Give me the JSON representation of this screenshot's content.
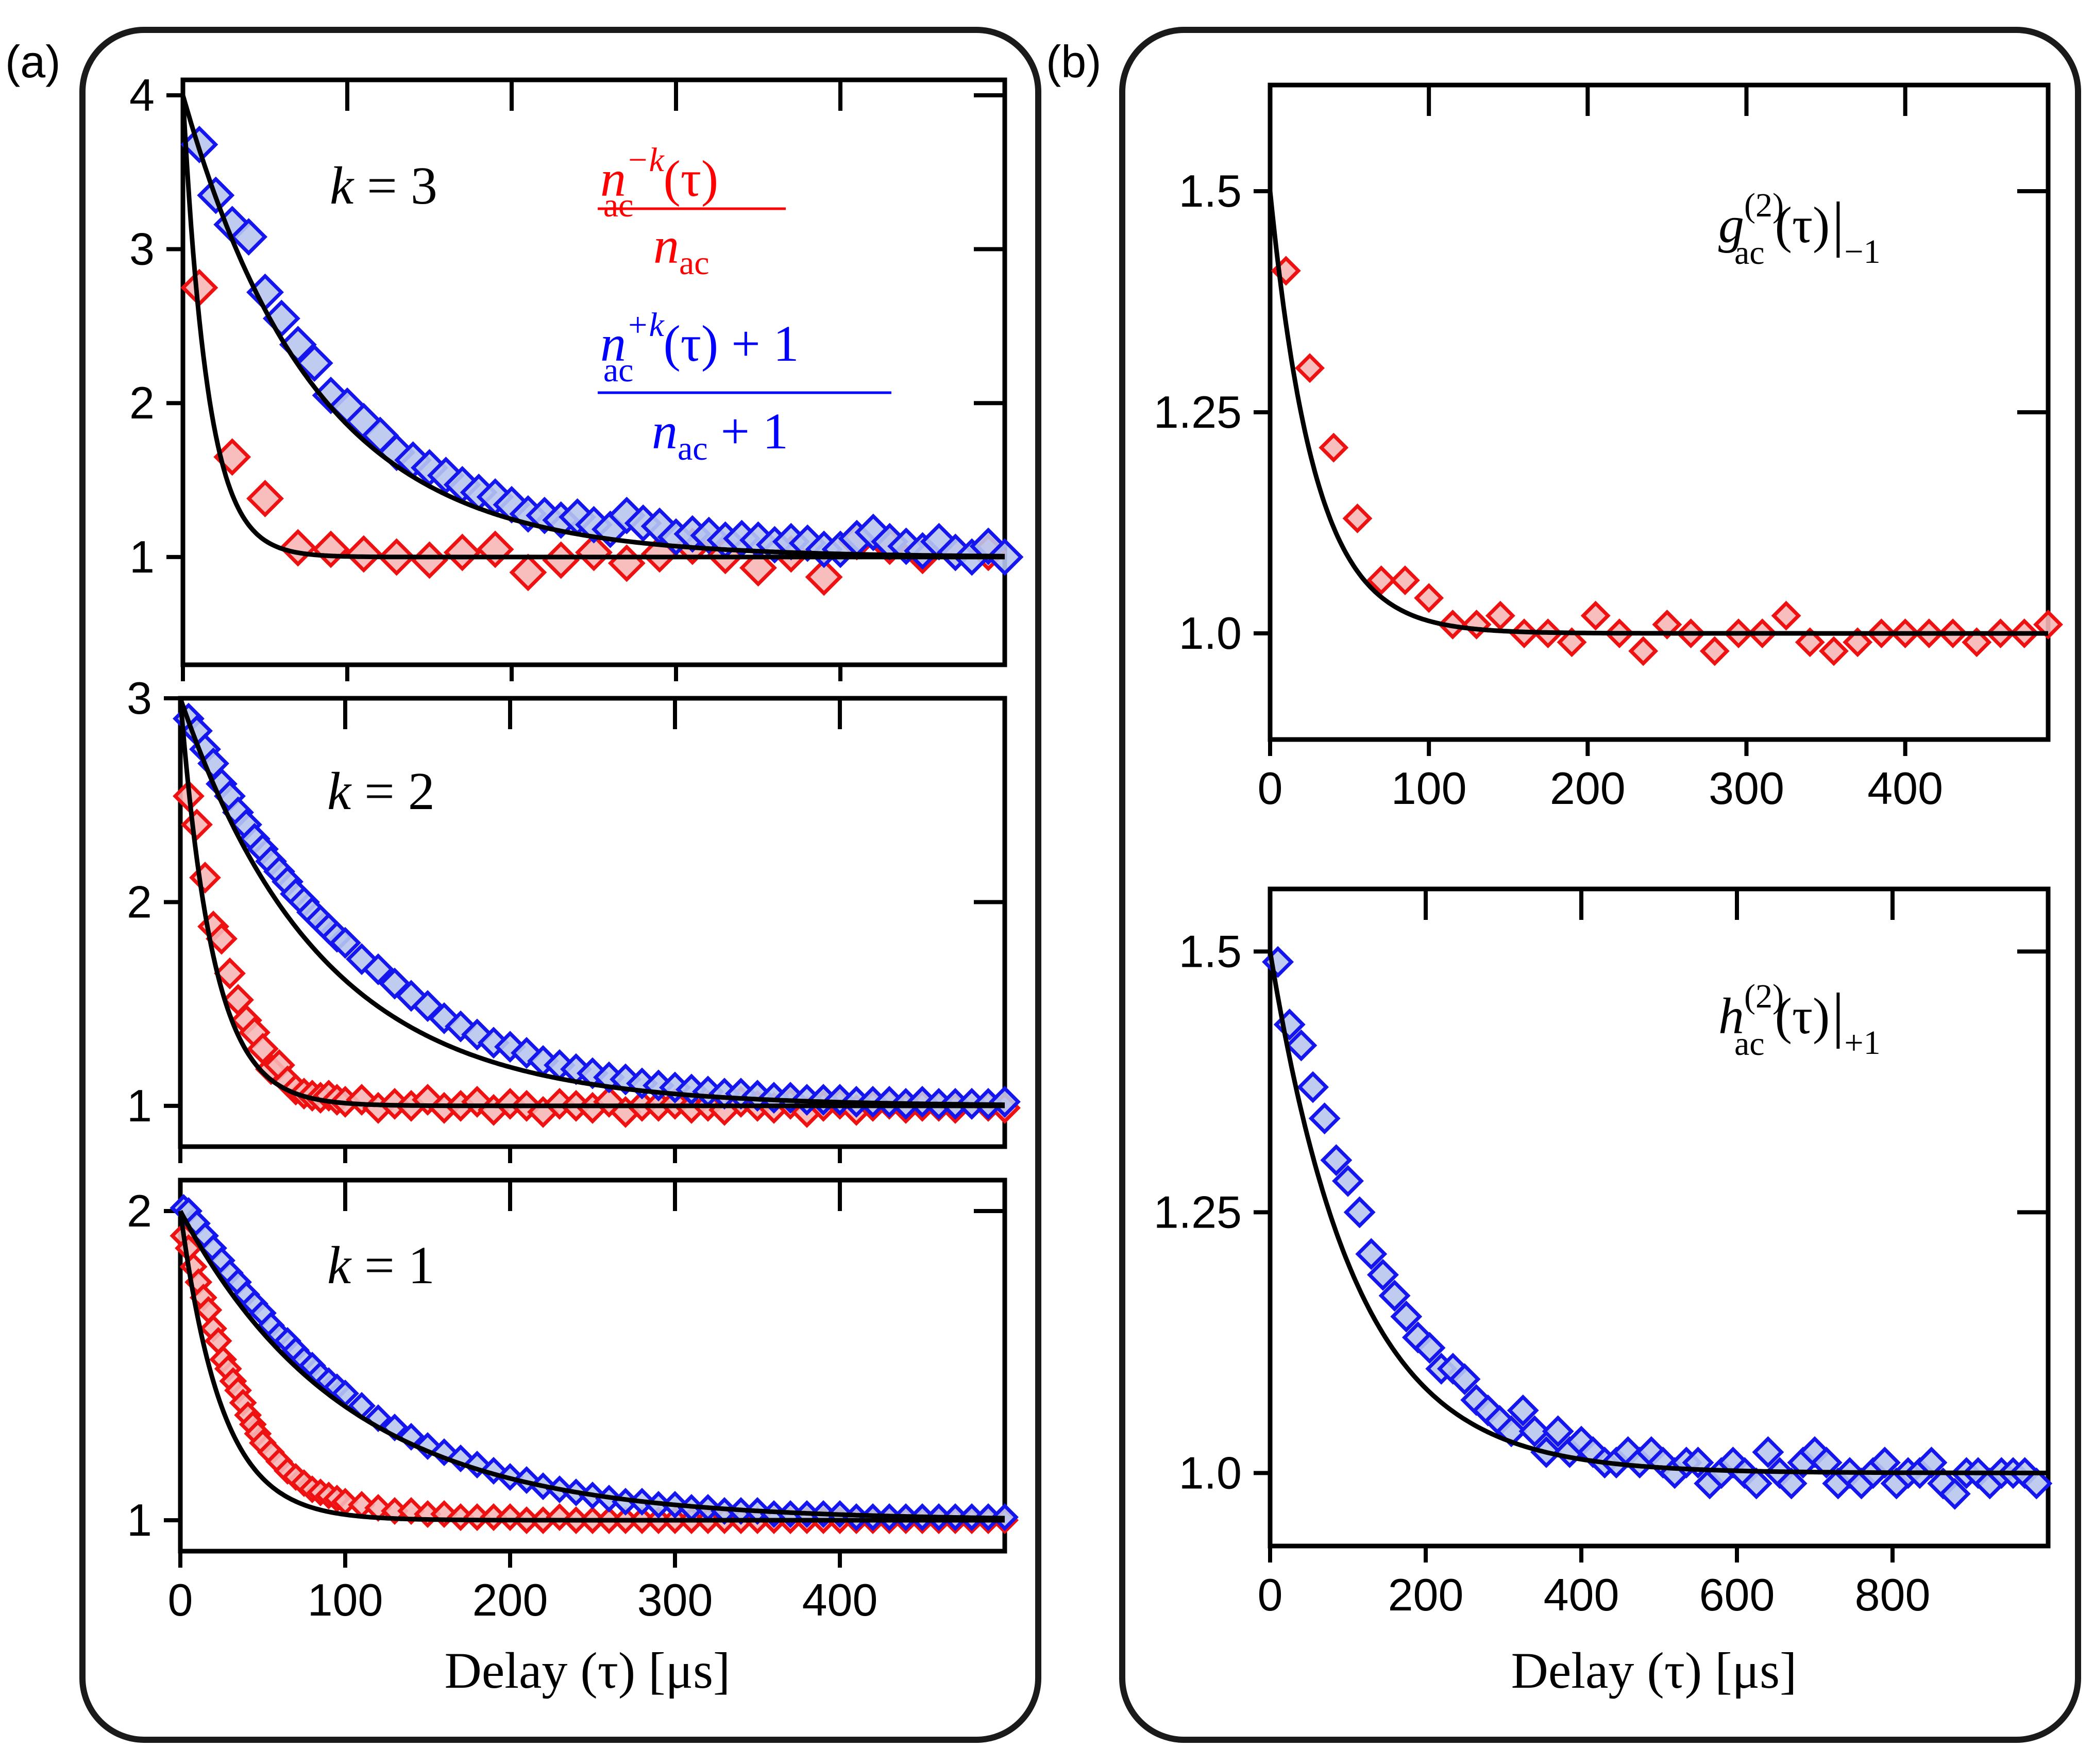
{
  "colors": {
    "red_stroke": "#ee1111",
    "red_fill": "#f7b7b7",
    "blue_stroke": "#1515ee",
    "blue_fill": "#b8c6ee",
    "fit": "#000000",
    "frame": "#1a1a1a"
  },
  "panels": {
    "a_label": "(a)",
    "b_label": "(b)"
  },
  "legend": {
    "red_num": "n",
    "red_num_sup": "−k",
    "red_num_sub": "ac",
    "red_num_arg": "(τ)",
    "red_den": "n",
    "red_den_sub": "ac",
    "blue_num": "n",
    "blue_num_sup": "+k",
    "blue_num_sub": "ac",
    "blue_num_arg": "(τ) + 1",
    "blue_den": "n",
    "blue_den_sub": "ac",
    "blue_den_tail": " + 1"
  },
  "annotations": {
    "g2_main": "g",
    "g2_sup": "(2)",
    "g2_sub": "ac",
    "g2_arg": "(τ)",
    "g2_bar": "|",
    "g2_eval": "−1",
    "h2_main": "h",
    "h2_sup": "(2)",
    "h2_sub": "ac",
    "h2_arg": "(τ)",
    "h2_bar": "|",
    "h2_eval": "+1"
  },
  "chart_data": [
    {
      "id": "a_k3",
      "type": "scatter",
      "title": "",
      "label": "k = 3",
      "xlabel": "",
      "ylabel": "",
      "xlim": [
        0,
        500
      ],
      "ylim": [
        0.3,
        4.1
      ],
      "yticks": [
        1,
        2,
        3,
        4
      ],
      "xticks": [
        0,
        100,
        200,
        300,
        400
      ],
      "show_xtick_labels": false,
      "grid": false,
      "series": [
        {
          "color": "red",
          "x": [
            10,
            30,
            50,
            70,
            90,
            110,
            130,
            150,
            170,
            190,
            210,
            230,
            250,
            270,
            290,
            310,
            330,
            350,
            370,
            390,
            410,
            430,
            450,
            470,
            490
          ],
          "y": [
            2.75,
            1.65,
            1.38,
            1.06,
            1.05,
            1.02,
            1.0,
            0.98,
            1.03,
            1.05,
            0.9,
            0.98,
            1.03,
            0.96,
            1.02,
            1.07,
            1.01,
            0.93,
            1.02,
            0.87,
            1.1,
            1.07,
            1.01,
            1.03,
            1.03
          ],
          "fit": {
            "A": 3.0,
            "tau": 15,
            "offset": 1.0
          }
        },
        {
          "color": "blue",
          "x": [
            10,
            20,
            30,
            40,
            50,
            60,
            70,
            80,
            90,
            100,
            110,
            120,
            130,
            140,
            150,
            160,
            170,
            180,
            190,
            200,
            210,
            220,
            230,
            240,
            250,
            260,
            270,
            280,
            290,
            300,
            310,
            320,
            330,
            340,
            350,
            360,
            370,
            380,
            390,
            400,
            410,
            420,
            430,
            440,
            450,
            460,
            470,
            480,
            490,
            500
          ],
          "y": [
            3.68,
            3.35,
            3.16,
            3.08,
            2.72,
            2.55,
            2.38,
            2.26,
            2.05,
            1.98,
            1.88,
            1.79,
            1.68,
            1.63,
            1.58,
            1.53,
            1.47,
            1.42,
            1.39,
            1.34,
            1.28,
            1.27,
            1.24,
            1.26,
            1.21,
            1.18,
            1.27,
            1.22,
            1.2,
            1.13,
            1.15,
            1.14,
            1.11,
            1.12,
            1.11,
            1.08,
            1.1,
            1.09,
            1.05,
            1.05,
            1.12,
            1.16,
            1.1,
            1.07,
            1.04,
            1.1,
            1.03,
            1.0,
            1.07,
            1.0
          ],
          "fit": {
            "A": 3.0,
            "tau": 80,
            "offset": 1.0
          }
        }
      ]
    },
    {
      "id": "a_k2",
      "type": "scatter",
      "title": "",
      "label": "k = 2",
      "xlabel": "",
      "ylabel": "",
      "xlim": [
        0,
        500
      ],
      "ylim": [
        0.8,
        3.0
      ],
      "yticks": [
        1,
        2,
        3
      ],
      "xticks": [
        0,
        100,
        200,
        300,
        400
      ],
      "show_xtick_labels": false,
      "grid": false,
      "series": [
        {
          "color": "red",
          "x": [
            5,
            10,
            15,
            20,
            25,
            30,
            35,
            40,
            45,
            50,
            55,
            60,
            65,
            70,
            75,
            80,
            85,
            90,
            95,
            100,
            110,
            120,
            130,
            140,
            150,
            160,
            170,
            180,
            190,
            200,
            210,
            220,
            230,
            240,
            250,
            260,
            270,
            280,
            290,
            300,
            310,
            320,
            330,
            340,
            350,
            360,
            370,
            380,
            390,
            400,
            410,
            420,
            430,
            440,
            450,
            460,
            470,
            480,
            490,
            500
          ],
          "y": [
            2.52,
            2.38,
            2.12,
            1.88,
            1.82,
            1.65,
            1.52,
            1.42,
            1.36,
            1.28,
            1.18,
            1.2,
            1.12,
            1.08,
            1.06,
            1.05,
            1.04,
            1.05,
            1.03,
            1.02,
            1.03,
            0.99,
            1.01,
            1.0,
            1.03,
            0.99,
            1.0,
            1.02,
            0.98,
            1.01,
            1.0,
            0.97,
            1.01,
            1.0,
            0.99,
            1.02,
            0.97,
            1.0,
            1.0,
            1.01,
            0.99,
            1.0,
            0.98,
            1.02,
            1.0,
            0.99,
            1.01,
            0.97,
            1.0,
            1.01,
            0.98,
            1.0,
            1.01,
            0.99,
            1.0,
            1.0,
            0.99,
            1.01,
            1.0,
            0.99
          ],
          "fit": {
            "A": 2.0,
            "tau": 20,
            "offset": 1.0
          }
        },
        {
          "color": "blue",
          "x": [
            5,
            10,
            15,
            20,
            25,
            30,
            35,
            40,
            45,
            50,
            55,
            60,
            65,
            70,
            75,
            80,
            85,
            90,
            95,
            100,
            110,
            120,
            130,
            140,
            150,
            160,
            170,
            180,
            190,
            200,
            210,
            220,
            230,
            240,
            250,
            260,
            270,
            280,
            290,
            300,
            310,
            320,
            330,
            340,
            350,
            360,
            370,
            380,
            390,
            400,
            410,
            420,
            430,
            440,
            450,
            460,
            470,
            480,
            490,
            500
          ],
          "y": [
            2.9,
            2.84,
            2.75,
            2.68,
            2.58,
            2.52,
            2.44,
            2.38,
            2.31,
            2.26,
            2.2,
            2.15,
            2.1,
            2.04,
            2.0,
            1.95,
            1.91,
            1.87,
            1.83,
            1.8,
            1.72,
            1.67,
            1.6,
            1.54,
            1.49,
            1.43,
            1.39,
            1.35,
            1.31,
            1.29,
            1.26,
            1.22,
            1.2,
            1.18,
            1.16,
            1.14,
            1.13,
            1.11,
            1.1,
            1.09,
            1.08,
            1.07,
            1.06,
            1.06,
            1.05,
            1.04,
            1.04,
            1.03,
            1.03,
            1.03,
            1.02,
            1.02,
            1.02,
            1.01,
            1.02,
            1.01,
            1.01,
            1.01,
            1.01,
            1.02
          ],
          "fit": {
            "A": 2.0,
            "tau": 85,
            "offset": 1.0
          }
        }
      ]
    },
    {
      "id": "a_k1",
      "type": "scatter",
      "title": "",
      "label": "k = 1",
      "xlabel": "Delay (τ) [μs]",
      "ylabel": "",
      "xlim": [
        0,
        500
      ],
      "ylim": [
        0.9,
        2.1
      ],
      "yticks": [
        1,
        2
      ],
      "xticks": [
        0,
        100,
        200,
        300,
        400
      ],
      "show_xtick_labels": true,
      "grid": false,
      "series": [
        {
          "color": "red",
          "x": [
            2,
            5,
            8,
            11,
            14,
            17,
            20,
            23,
            26,
            29,
            32,
            35,
            38,
            41,
            44,
            47,
            50,
            55,
            60,
            65,
            70,
            75,
            80,
            85,
            90,
            95,
            100,
            110,
            120,
            130,
            140,
            150,
            160,
            170,
            180,
            190,
            200,
            210,
            220,
            230,
            240,
            250,
            260,
            270,
            280,
            290,
            300,
            310,
            320,
            330,
            340,
            350,
            360,
            370,
            380,
            390,
            400,
            410,
            420,
            430,
            440,
            450,
            460,
            470,
            480,
            490,
            500
          ],
          "y": [
            1.92,
            1.88,
            1.82,
            1.77,
            1.72,
            1.68,
            1.62,
            1.58,
            1.52,
            1.49,
            1.45,
            1.42,
            1.38,
            1.34,
            1.31,
            1.28,
            1.25,
            1.22,
            1.19,
            1.16,
            1.14,
            1.12,
            1.1,
            1.09,
            1.08,
            1.07,
            1.06,
            1.05,
            1.04,
            1.03,
            1.03,
            1.02,
            1.02,
            1.01,
            1.01,
            1.01,
            1.01,
            1.0,
            1.0,
            1.01,
            1.0,
            1.0,
            1.0,
            1.0,
            1.0,
            1.0,
            1.0,
            1.0,
            1.0,
            1.0,
            1.0,
            1.0,
            1.0,
            1.0,
            1.0,
            1.0,
            1.0,
            1.0,
            1.0,
            1.0,
            1.0,
            1.0,
            1.0,
            1.0,
            1.0,
            1.0,
            1.0
          ],
          "fit": {
            "A": 1.0,
            "tau": 25,
            "offset": 1.0
          }
        },
        {
          "color": "blue",
          "x": [
            2,
            5,
            10,
            15,
            20,
            25,
            30,
            35,
            40,
            45,
            50,
            55,
            60,
            65,
            70,
            75,
            80,
            85,
            90,
            95,
            100,
            110,
            120,
            130,
            140,
            150,
            160,
            170,
            180,
            190,
            200,
            210,
            220,
            230,
            240,
            250,
            260,
            270,
            280,
            290,
            300,
            310,
            320,
            330,
            340,
            350,
            360,
            370,
            380,
            390,
            400,
            410,
            420,
            430,
            440,
            450,
            460,
            470,
            480,
            490,
            500
          ],
          "y": [
            2.01,
            2.0,
            1.96,
            1.92,
            1.88,
            1.84,
            1.8,
            1.77,
            1.73,
            1.7,
            1.67,
            1.63,
            1.6,
            1.58,
            1.55,
            1.52,
            1.5,
            1.47,
            1.45,
            1.43,
            1.41,
            1.37,
            1.33,
            1.3,
            1.27,
            1.24,
            1.22,
            1.2,
            1.18,
            1.16,
            1.14,
            1.13,
            1.11,
            1.1,
            1.09,
            1.08,
            1.07,
            1.06,
            1.06,
            1.05,
            1.05,
            1.04,
            1.04,
            1.03,
            1.03,
            1.03,
            1.02,
            1.02,
            1.02,
            1.02,
            1.02,
            1.01,
            1.01,
            1.01,
            1.01,
            1.01,
            1.01,
            1.01,
            1.01,
            1.01,
            1.01
          ],
          "fit": {
            "A": 1.0,
            "tau": 100,
            "offset": 1.0
          }
        }
      ]
    },
    {
      "id": "b_g2",
      "type": "scatter",
      "title": "",
      "xlabel": "",
      "ylabel": "",
      "xlim": [
        0,
        490
      ],
      "ylim": [
        0.88,
        1.62
      ],
      "yticks": [
        1.0,
        1.25,
        1.5
      ],
      "ytick_labels": [
        "1.0",
        "1.25",
        "1.5"
      ],
      "xticks": [
        0,
        100,
        200,
        300,
        400
      ],
      "show_xtick_labels": true,
      "grid": false,
      "series": [
        {
          "color": "red",
          "x": [
            10,
            25,
            40,
            55,
            70,
            85,
            100,
            115,
            130,
            145,
            160,
            175,
            190,
            205,
            220,
            235,
            250,
            265,
            280,
            295,
            310,
            325,
            340,
            355,
            370,
            385,
            400,
            415,
            430,
            445,
            460,
            475,
            490
          ],
          "y": [
            1.41,
            1.3,
            1.21,
            1.13,
            1.06,
            1.06,
            1.04,
            1.01,
            1.01,
            1.02,
            1.0,
            1.0,
            0.99,
            1.02,
            1.0,
            0.98,
            1.01,
            1.0,
            0.98,
            1.0,
            1.0,
            1.02,
            0.99,
            0.98,
            0.99,
            1.0,
            1.0,
            1.0,
            1.0,
            0.99,
            1.0,
            1.0,
            1.01
          ],
          "fit": {
            "A": 0.5,
            "tau": 28,
            "offset": 1.0
          }
        }
      ]
    },
    {
      "id": "b_h2",
      "type": "scatter",
      "title": "",
      "xlabel": "Delay (τ) [μs]",
      "ylabel": "",
      "xlim": [
        0,
        1000
      ],
      "ylim": [
        0.93,
        1.56
      ],
      "yticks": [
        1.0,
        1.25,
        1.5
      ],
      "ytick_labels": [
        "1.0",
        "1.25",
        "1.5"
      ],
      "xticks": [
        0,
        200,
        400,
        600,
        800
      ],
      "show_xtick_labels": true,
      "grid": false,
      "series": [
        {
          "color": "blue",
          "x": [
            10,
            25,
            40,
            55,
            70,
            85,
            100,
            115,
            130,
            145,
            160,
            175,
            190,
            205,
            220,
            235,
            250,
            265,
            280,
            295,
            310,
            325,
            340,
            355,
            370,
            385,
            400,
            415,
            430,
            445,
            460,
            475,
            490,
            505,
            520,
            535,
            550,
            565,
            580,
            595,
            610,
            625,
            640,
            655,
            670,
            685,
            700,
            715,
            730,
            745,
            760,
            775,
            790,
            805,
            820,
            835,
            850,
            865,
            880,
            895,
            910,
            925,
            940,
            955,
            970,
            985
          ],
          "y": [
            1.49,
            1.43,
            1.41,
            1.37,
            1.34,
            1.3,
            1.28,
            1.25,
            1.21,
            1.19,
            1.17,
            1.15,
            1.13,
            1.12,
            1.1,
            1.1,
            1.09,
            1.07,
            1.06,
            1.05,
            1.04,
            1.06,
            1.04,
            1.02,
            1.04,
            1.02,
            1.03,
            1.02,
            1.01,
            1.01,
            1.02,
            1.01,
            1.02,
            1.01,
            1.0,
            1.01,
            1.01,
            0.99,
            1.0,
            1.01,
            1.0,
            0.99,
            1.02,
            1.0,
            0.99,
            1.01,
            1.02,
            1.01,
            0.99,
            1.0,
            0.99,
            1.0,
            1.01,
            0.99,
            1.0,
            1.0,
            1.01,
            0.99,
            0.98,
            1.0,
            1.0,
            0.99,
            1.0,
            1.0,
            1.0,
            0.99
          ],
          "fit": {
            "A": 0.5,
            "tau": 110,
            "offset": 1.0
          }
        }
      ]
    }
  ]
}
